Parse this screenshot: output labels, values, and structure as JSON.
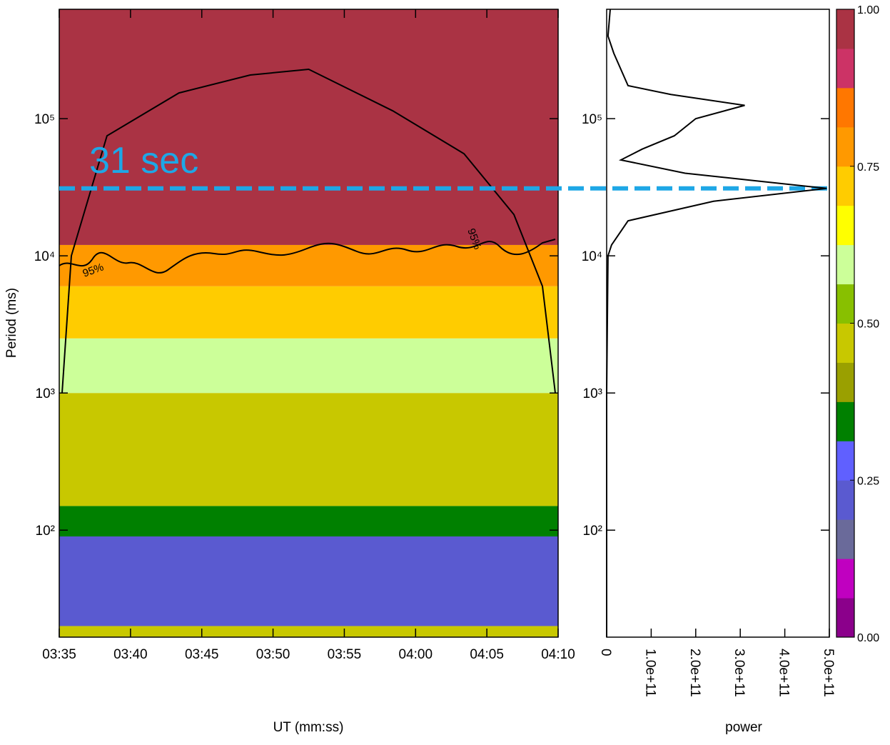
{
  "chart_data": [
    {
      "type": "heatmap",
      "ylabel": "Period (ms)",
      "xlabel": "UT (mm:ss)",
      "log_y": true,
      "xlim": [
        215,
        250
      ],
      "xticks": [
        {
          "value": 215,
          "label": "03:35"
        },
        {
          "value": 220,
          "label": "03:40"
        },
        {
          "value": 225,
          "label": "03:45"
        },
        {
          "value": 230,
          "label": "03:50"
        },
        {
          "value": 235,
          "label": "03:55"
        },
        {
          "value": 240,
          "label": "04:00"
        },
        {
          "value": 245,
          "label": "04:05"
        },
        {
          "value": 250,
          "label": "04:10"
        }
      ],
      "ylim": [
        16.6,
        627000
      ],
      "yticks": [
        {
          "value": 100,
          "label": "10²"
        },
        {
          "value": 1000,
          "label": "10³"
        },
        {
          "value": 10000,
          "label": "10⁴"
        },
        {
          "value": 100000,
          "label": "10⁵"
        }
      ],
      "period_bins": [
        16.6,
        20,
        90,
        150,
        1000,
        2500,
        6000,
        12000,
        627000
      ],
      "power": [
        0.45,
        0.22,
        0.35,
        0.45,
        0.6,
        0.7,
        0.8,
        0.95
      ],
      "cone": {
        "x": [
          215.2,
          215.85,
          218.35,
          223.4,
          228.4,
          232.5,
          238.4,
          243.4,
          246.9,
          248.9,
          249.8
        ],
        "y": [
          1000,
          10000,
          75000,
          154000,
          208000,
          229000,
          114000,
          55500,
          20000,
          6000,
          1000
        ]
      },
      "contour_labels": [
        "95%",
        "95%"
      ],
      "annotation": {
        "text": "31 sec",
        "value": 31000,
        "color": "#1ea7e6"
      }
    },
    {
      "type": "line",
      "xlabel": "power",
      "log_y": true,
      "xlim": [
        0,
        500000000000
      ],
      "xticks": [
        0,
        {
          "value": 100000000000,
          "label": "1.0e+11"
        },
        {
          "value": 200000000000,
          "label": "2.0e+11"
        },
        {
          "value": 300000000000,
          "label": "3.0e+11"
        },
        {
          "value": 400000000000,
          "label": "4.0e+11"
        },
        {
          "value": 500000000000,
          "label": "5.0e+11"
        }
      ],
      "ylim": [
        16.6,
        627000
      ],
      "yticks": [
        {
          "value": 100,
          "label": "10²"
        },
        {
          "value": 1000,
          "label": "10³"
        },
        {
          "value": 10000,
          "label": "10⁴"
        },
        {
          "value": 100000,
          "label": "10⁵"
        }
      ],
      "series": [
        {
          "color": "#000000",
          "x": [
            8000000000,
            3000000000,
            16000000000,
            48000000000,
            144000000000,
            310000000000,
            200000000000,
            152000000000,
            80000000000,
            32000000000,
            176000000000,
            494000000000,
            240000000000,
            48000000000,
            11000000000,
            3000000000,
            0,
            0
          ],
          "y": [
            627000,
            400000,
            300000,
            174000,
            150000,
            125000,
            100000,
            75000,
            60000,
            50000,
            40000,
            31000,
            25000,
            18000,
            12000,
            10000,
            1000,
            16.6
          ]
        }
      ]
    },
    {
      "type": "colorbar",
      "clim": [
        0,
        1
      ],
      "colors": [
        "#8b008b",
        "#c000c0",
        "#6a6a9a",
        "#5a5ad0",
        "#6060ff",
        "#008000",
        "#9aa000",
        "#c8c800",
        "#88c000",
        "#ccff99",
        "#ffff00",
        "#ffcc00",
        "#ff9900",
        "#ff7700",
        "#cc3366",
        "#aa3344"
      ],
      "ticks": [
        {
          "value": 0,
          "label": "0.00"
        },
        {
          "value": 0.25,
          "label": "0.25"
        },
        {
          "value": 0.5,
          "label": "0.50"
        },
        {
          "value": 0.75,
          "label": "0.75"
        },
        {
          "value": 1,
          "label": "1.00"
        }
      ]
    }
  ]
}
